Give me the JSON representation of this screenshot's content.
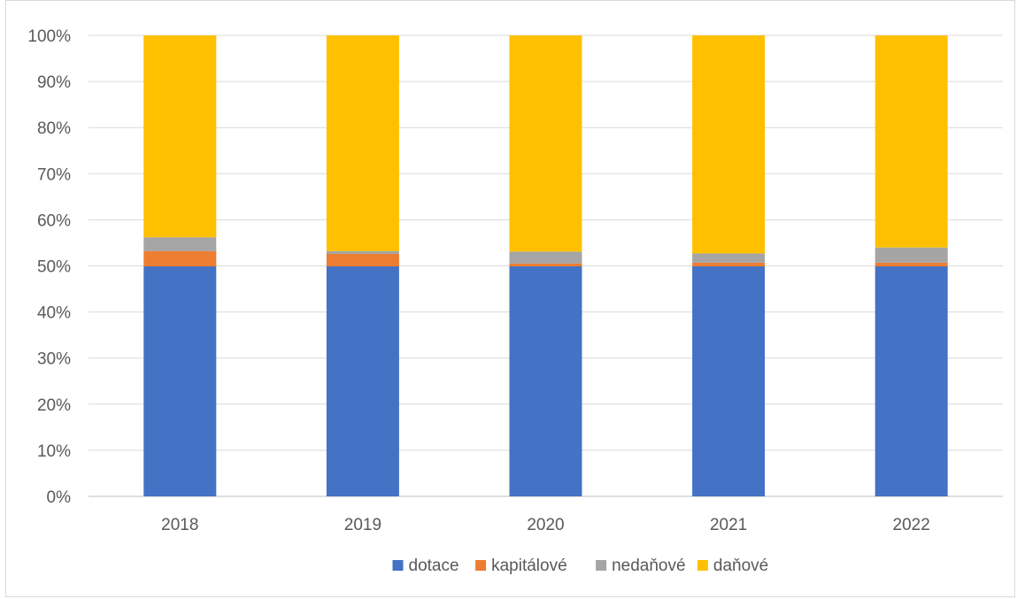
{
  "chart_data": {
    "type": "bar",
    "stacked": true,
    "percent_stacked": true,
    "categories": [
      "2018",
      "2019",
      "2020",
      "2021",
      "2022"
    ],
    "series": [
      {
        "name": "dotace",
        "color": "#4472C4",
        "values": [
          49.9,
          49.9,
          49.9,
          49.9,
          49.9
        ]
      },
      {
        "name": "kapitálové",
        "color": "#ED7D31",
        "values": [
          3.3,
          2.7,
          0.6,
          0.8,
          0.8
        ]
      },
      {
        "name": "nedaňové",
        "color": "#A5A5A5",
        "values": [
          3.0,
          0.6,
          2.6,
          2.0,
          3.3
        ]
      },
      {
        "name": "daňové",
        "color": "#FFC000",
        "values": [
          43.8,
          46.8,
          46.9,
          47.3,
          46.0
        ]
      }
    ],
    "y_ticks": [
      "0%",
      "10%",
      "20%",
      "30%",
      "40%",
      "50%",
      "60%",
      "70%",
      "80%",
      "90%",
      "100%"
    ],
    "ylim": [
      0,
      100
    ],
    "title": "",
    "xlabel": "",
    "ylabel": "",
    "grid": true,
    "legend_position": "bottom"
  }
}
